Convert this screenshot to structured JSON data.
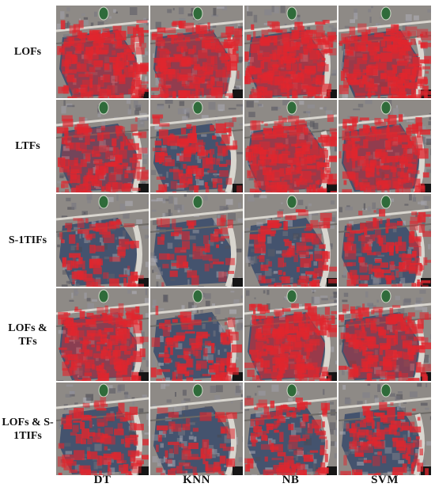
{
  "figure": {
    "columns": [
      "DT",
      "KNN",
      "NB",
      "SVM"
    ],
    "rows": [
      {
        "label": "LOFs",
        "intensity": [
          0.85,
          0.85,
          0.95,
          0.9
        ]
      },
      {
        "label": "LTFs",
        "intensity": [
          0.65,
          0.55,
          0.9,
          0.85
        ]
      },
      {
        "label": "S-1TIFs",
        "intensity": [
          0.3,
          0.15,
          0.4,
          0.55
        ]
      },
      {
        "label": "LOFs &\nTFs",
        "intensity": [
          0.8,
          0.5,
          0.9,
          0.75
        ]
      },
      {
        "label": "LOFs & S-\n1TIFs",
        "intensity": [
          0.5,
          0.2,
          0.55,
          0.5
        ]
      }
    ]
  },
  "colors": {
    "prediction_red": "#e0262e",
    "urban_blue": "#44536e",
    "ground_gray": "#8e8a86",
    "road": "#d9d6cf",
    "park_green": "#2f6b3a"
  }
}
